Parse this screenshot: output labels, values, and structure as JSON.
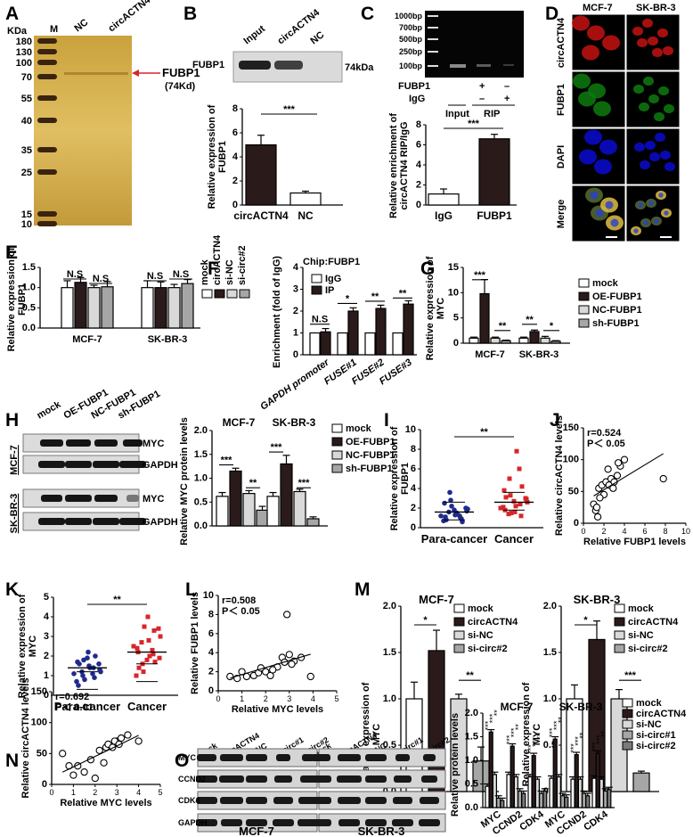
{
  "panel_letters": [
    "A",
    "B",
    "C",
    "D",
    "E",
    "F",
    "G",
    "H",
    "I",
    "J",
    "K",
    "L",
    "M",
    "N",
    "O"
  ],
  "panelA": {
    "kda_label": "KDa",
    "lanes": [
      "M",
      "NC",
      "circACTN4"
    ],
    "markers": [
      "180",
      "130",
      "100",
      "70",
      "55",
      "40",
      "35",
      "25",
      "15",
      "10"
    ],
    "band_label": "FUBP1",
    "band_sub": "(74Kd)"
  },
  "panelB": {
    "lanes": [
      "Input",
      "circACTN4",
      "NC"
    ],
    "row_label": "FUBP1",
    "size_label": "74kDa",
    "ylabel": "Relative expression of FUBP1",
    "significance": "***",
    "yticks": [
      "0",
      "2",
      "4",
      "6",
      "8"
    ]
  },
  "panelC": {
    "ladder": [
      "1000bp",
      "700bp",
      "500bp",
      "250bp",
      "100bp"
    ],
    "row1_label": "FUBP1",
    "row1_marks": [
      "+",
      "–"
    ],
    "row2_label": "IgG",
    "row2_marks": [
      "–",
      "+"
    ],
    "group_input": "Input",
    "group_rip": "RIP",
    "ylabel": "Relative enrichment of circACTN4 RIP/IgG",
    "significance": "***",
    "yticks": [
      "0",
      "2",
      "4",
      "6",
      "8"
    ]
  },
  "panelD": {
    "cols": [
      "MCF-7",
      "SK-BR-3"
    ],
    "rows": [
      "circACTN4",
      "FUBP1",
      "DAPI",
      "Merge"
    ]
  },
  "panelE": {
    "ylabel": "Relative expression of FUBP1",
    "legend": [
      "mock",
      "circACTN4",
      "si-NC",
      "si-circ#2"
    ],
    "sig": [
      "N.S",
      "N.S",
      "N.S",
      "N.S"
    ],
    "yticks": [
      "0.0",
      "0.5",
      "1.0",
      "1.5"
    ]
  },
  "panelF": {
    "title": "Chip:FUBP1",
    "legend": [
      "IgG",
      "IP"
    ],
    "ylabel": "Enrichment (fold of IgG)",
    "sig": [
      "N.S",
      "*",
      "**",
      "**"
    ],
    "yticks": [
      "0",
      "1",
      "2",
      "3",
      "4"
    ]
  },
  "panelG": {
    "ylabel": "Relative expression of MYC",
    "legend": [
      "mock",
      "OE-FUBP1",
      "NC-FUBP1",
      "sh-FUBP1"
    ],
    "yticks": [
      "0",
      "5",
      "10",
      "15"
    ],
    "sig_mcf": [
      "***",
      "**"
    ],
    "sig_sk": [
      "**",
      "*"
    ]
  },
  "panelH": {
    "lanes": [
      "mock",
      "OE-FUBP1",
      "NC-FUBP1",
      "sh-FUBP1"
    ],
    "cell1": "MCF-7",
    "cell2": "SK-BR-3",
    "row_myc": "MYC",
    "row_gapdh": "GAPDH",
    "ylabel": "Relative MYC protein levels",
    "legend": [
      "mock",
      "OE-FUBP1",
      "NC-FUBP1",
      "sh-FUBP1"
    ],
    "yticks": [
      "0.0",
      "0.5",
      "1.0",
      "1.5",
      "2.0"
    ],
    "sig_mcf": [
      "***",
      "**"
    ],
    "sig_sk": [
      "***",
      "***"
    ]
  },
  "panelI": {
    "ylabel": "Relative expression of FUBP1",
    "significance": "**",
    "yticks": [
      "0",
      "2",
      "4",
      "6",
      "8",
      "10"
    ]
  },
  "panelJ": {
    "stat_r": "r=0.524",
    "stat_p": "P＜ 0.05",
    "ylabel": "Relative circACTN4 levels",
    "xlabel": "Relative FUBP1 levels",
    "xticks": [
      "0",
      "2",
      "4",
      "6",
      "8",
      "10"
    ],
    "yticks": [
      "0",
      "50",
      "100",
      "150"
    ]
  },
  "panelK": {
    "ylabel": "Relative expression of MYC",
    "significance": "**",
    "yticks": [
      "0",
      "1",
      "2",
      "3",
      "4",
      "5"
    ]
  },
  "panelL": {
    "stat_r": "r=0.508",
    "stat_p": "P＜ 0.05",
    "ylabel": "Relative FUBP1 levels",
    "xlabel": "Relative MYC levels",
    "xticks": [
      "0",
      "1",
      "2",
      "3",
      "4",
      "5"
    ],
    "yticks": [
      "0",
      "2",
      "4",
      "6",
      "8",
      "10"
    ]
  },
  "panelM": {
    "legend": [
      "mock",
      "circACTN4",
      "si-NC",
      "si-circ#2"
    ],
    "ylabel": "Relative expression of MYC",
    "yticks": [
      "0.0",
      "0.5",
      "1.0",
      "1.5",
      "2.0"
    ],
    "sig_mcf": [
      "*",
      "**"
    ],
    "sig_sk": [
      "*",
      "***"
    ]
  },
  "panelN": {
    "stat_r": "r=0.692",
    "stat_p": "P＜ 0.01",
    "ylabel": "Relative circACTN4 levels",
    "xlabel": "Relative MYC levels",
    "xticks": [
      "0",
      "1",
      "2",
      "3",
      "4",
      "5"
    ],
    "yticks": [
      "0",
      "50",
      "100",
      "150"
    ]
  },
  "panelO": {
    "lanes": [
      "mock",
      "circACTN4",
      "si-NC",
      "si-circ#1",
      "si-circ#2"
    ],
    "rows": [
      "MYC",
      "CCND2",
      "CDK4",
      "GAPDH"
    ],
    "cell1": "MCF-7",
    "cell2": "SK-BR-3",
    "ylabel": "Relative protein levels",
    "legend": [
      "mock",
      "circACTN4",
      "si-NC",
      "si-circ#1",
      "si-circ#2"
    ],
    "yticks": [
      "0.0",
      "0.5",
      "1.0",
      "1.5",
      "2.0"
    ],
    "categories": [
      "MYC",
      "CCND2",
      "CDK4",
      "MYC",
      "CCND2",
      "CDK4"
    ]
  },
  "colors": {
    "black": "#000000",
    "dark_fill": "#2a1a1a",
    "light_gray": "#d9d9d9",
    "mid_gray": "#a6a6a6",
    "red_dot": "#d9252a",
    "blue_dot": "#1f2a8c",
    "gel_gold": "#d8b04a"
  },
  "chart_data": [
    {
      "id": "B",
      "type": "bar",
      "categories": [
        "circACTN4",
        "NC"
      ],
      "values": [
        5.0,
        1.0
      ],
      "errors": [
        0.8,
        0.15
      ],
      "ylim": [
        0,
        8
      ],
      "ylabel": "Relative expression of FUBP1"
    },
    {
      "id": "C",
      "type": "bar",
      "categories": [
        "IgG",
        "FUBP1"
      ],
      "values": [
        1.1,
        6.6
      ],
      "errors": [
        0.5,
        0.45
      ],
      "ylim": [
        0,
        8
      ],
      "ylabel": "Relative enrichment of circACTN4 RIP/IgG"
    },
    {
      "id": "E",
      "type": "bar",
      "groups": [
        "MCF-7",
        "SK-BR-3"
      ],
      "series": [
        {
          "name": "mock",
          "values": [
            1.0,
            1.0
          ]
        },
        {
          "name": "circACTN4",
          "values": [
            1.13,
            1.0
          ]
        },
        {
          "name": "si-NC",
          "values": [
            1.0,
            1.0
          ]
        },
        {
          "name": "si-circ#2",
          "values": [
            1.02,
            1.1
          ]
        }
      ],
      "ylim": [
        0,
        1.5
      ]
    },
    {
      "id": "F",
      "type": "bar",
      "categories": [
        "GAPDH promoter",
        "FUSE#1",
        "FUSE#2",
        "FUSE#3"
      ],
      "series": [
        {
          "name": "IgG",
          "values": [
            1.0,
            1.0,
            1.0,
            1.0
          ]
        },
        {
          "name": "IP",
          "values": [
            1.05,
            2.0,
            2.12,
            2.32
          ]
        }
      ],
      "ylim": [
        0,
        4
      ]
    },
    {
      "id": "G",
      "type": "bar",
      "groups": [
        "MCF-7",
        "SK-BR-3"
      ],
      "series": [
        {
          "name": "mock",
          "values": [
            1.0,
            1.0
          ]
        },
        {
          "name": "OE-FUBP1",
          "values": [
            9.8,
            2.3
          ]
        },
        {
          "name": "NC-FUBP1",
          "values": [
            1.0,
            1.0
          ]
        },
        {
          "name": "sh-FUBP1",
          "values": [
            0.5,
            0.4
          ]
        }
      ],
      "ylim": [
        0,
        15
      ]
    },
    {
      "id": "H",
      "type": "bar",
      "groups": [
        "MCF-7",
        "SK-BR-3"
      ],
      "series": [
        {
          "name": "mock",
          "values": [
            0.62,
            0.62
          ]
        },
        {
          "name": "OE-FUBP1",
          "values": [
            1.15,
            1.3
          ]
        },
        {
          "name": "NC-FUBP1",
          "values": [
            0.68,
            0.72
          ]
        },
        {
          "name": "sh-FUBP1",
          "values": [
            0.33,
            0.15
          ]
        }
      ],
      "ylim": [
        0,
        2.0
      ]
    },
    {
      "id": "I",
      "type": "scatter",
      "groups": [
        "Para-cancer",
        "Cancer"
      ],
      "points": [
        [
          1.2,
          0.8,
          2.2,
          1.5,
          0.6,
          1.9,
          1.1,
          2.8,
          1.4,
          0.9,
          1.7,
          2.5,
          3.6,
          1.3,
          1.0,
          2.0,
          0.7,
          1.6,
          1.8,
          1.2
        ],
        [
          2.0,
          3.1,
          1.5,
          7.8,
          4.2,
          2.6,
          1.8,
          3.3,
          2.2,
          1.2,
          2.9,
          3.8,
          5.0,
          1.6,
          2.4,
          3.0,
          2.1,
          1.4,
          2.7,
          6.0
        ]
      ],
      "means": [
        1.6,
        2.6
      ],
      "ylim": [
        0,
        10
      ]
    },
    {
      "id": "J",
      "type": "scatter",
      "x": [
        1.0,
        1.2,
        1.5,
        1.8,
        2.0,
        2.2,
        2.5,
        2.7,
        3.0,
        3.3,
        3.6,
        4.0,
        1.4,
        1.6,
        2.4,
        7.8,
        1.3,
        2.9,
        3.4
      ],
      "y": [
        30,
        20,
        55,
        60,
        45,
        65,
        60,
        70,
        65,
        75,
        90,
        100,
        10,
        40,
        85,
        70,
        25,
        55,
        95
      ],
      "xlim": [
        0,
        10
      ],
      "ylim": [
        0,
        150
      ]
    },
    {
      "id": "K",
      "type": "scatter",
      "groups": [
        "Para-cancer",
        "Cancer"
      ],
      "points": [
        [
          1.1,
          1.6,
          0.8,
          1.4,
          2.0,
          1.2,
          0.5,
          1.8,
          1.5,
          0.9,
          1.3,
          1.7,
          1.0,
          2.2,
          1.4,
          1.6,
          0.7,
          1.2,
          1.9,
          1.1
        ],
        [
          2.5,
          1.4,
          3.5,
          2.0,
          1.7,
          3.0,
          2.2,
          1.2,
          2.8,
          3.3,
          1.9,
          2.4,
          1.6,
          4.0,
          2.1,
          3.4,
          1.0,
          2.7,
          1.8,
          2.3
        ]
      ],
      "means": [
        1.4,
        2.2
      ],
      "ylim": [
        0,
        5
      ]
    },
    {
      "id": "L",
      "type": "scatter",
      "x": [
        0.5,
        0.8,
        1.0,
        1.2,
        1.5,
        1.7,
        2.0,
        2.2,
        2.5,
        2.7,
        2.8,
        3.0,
        3.2,
        3.5,
        3.9,
        2.9,
        1.8,
        2.3,
        3.1
      ],
      "y": [
        1.5,
        1.3,
        2.0,
        1.5,
        1.6,
        1.9,
        2.0,
        1.6,
        2.5,
        3.5,
        3.0,
        3.8,
        3.1,
        3.5,
        1.5,
        8.0,
        2.4,
        2.2,
        2.8
      ],
      "xlim": [
        0,
        5
      ],
      "ylim": [
        0,
        10
      ]
    },
    {
      "id": "M-MCF-7",
      "type": "bar",
      "categories": [
        "mock",
        "circACTN4",
        "si-NC",
        "si-circ#2"
      ],
      "values": [
        1.0,
        1.52,
        1.0,
        0.33
      ],
      "errors": [
        0.18,
        0.22,
        0.05,
        0.15
      ],
      "ylim": [
        0,
        2.0
      ]
    },
    {
      "id": "M-SK-BR-3",
      "type": "bar",
      "categories": [
        "mock",
        "circACTN4",
        "si-NC",
        "si-circ#2"
      ],
      "values": [
        1.0,
        1.64,
        1.0,
        0.2
      ],
      "errors": [
        0.15,
        0.2,
        0.1,
        0.02
      ],
      "ylim": [
        0,
        2.0
      ]
    },
    {
      "id": "N",
      "type": "scatter",
      "x": [
        0.5,
        0.8,
        1.0,
        1.5,
        1.8,
        2.0,
        2.2,
        2.5,
        2.6,
        2.8,
        3.0,
        3.2,
        3.5,
        4.0,
        1.2,
        2.4,
        2.9,
        3.1
      ],
      "y": [
        50,
        30,
        15,
        20,
        40,
        10,
        55,
        60,
        65,
        60,
        70,
        75,
        80,
        70,
        30,
        35,
        70,
        65
      ],
      "xlim": [
        0,
        5
      ],
      "ylim": [
        0,
        150
      ]
    },
    {
      "id": "O",
      "type": "bar",
      "categories": [
        "MYC",
        "CCND2",
        "CDK4",
        "MYC",
        "CCND2",
        "CDK4"
      ],
      "series": [
        {
          "name": "mock",
          "values": [
            0.45,
            0.7,
            0.65,
            0.62,
            0.6,
            0.62
          ]
        },
        {
          "name": "circACTN4",
          "values": [
            1.6,
            1.3,
            1.1,
            1.45,
            1.12,
            1.15
          ]
        },
        {
          "name": "si-NC",
          "values": [
            0.7,
            0.65,
            0.6,
            0.65,
            0.6,
            0.6
          ]
        },
        {
          "name": "si-circ#1",
          "values": [
            0.2,
            0.35,
            0.3,
            0.25,
            0.3,
            0.35
          ]
        },
        {
          "name": "si-circ#2",
          "values": [
            0.15,
            0.3,
            0.35,
            0.22,
            0.25,
            0.38
          ]
        }
      ],
      "ylim": [
        0,
        2.0
      ]
    }
  ]
}
